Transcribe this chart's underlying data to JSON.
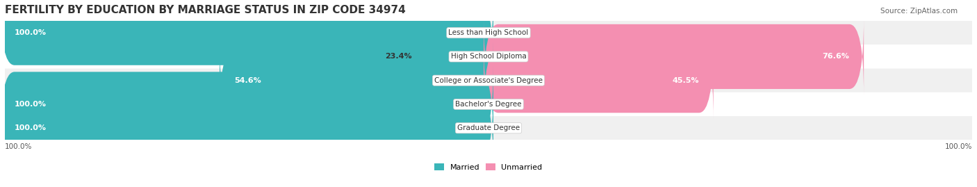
{
  "title": "FERTILITY BY EDUCATION BY MARRIAGE STATUS IN ZIP CODE 34974",
  "source": "Source: ZipAtlas.com",
  "categories": [
    "Less than High School",
    "High School Diploma",
    "College or Associate's Degree",
    "Bachelor's Degree",
    "Graduate Degree"
  ],
  "married": [
    100.0,
    23.4,
    54.6,
    100.0,
    100.0
  ],
  "unmarried": [
    0.0,
    76.6,
    45.5,
    0.0,
    0.0
  ],
  "married_color": "#3ab5b8",
  "unmarried_color": "#f48fb1",
  "bar_bg_color": "#e8e8e8",
  "row_bg_colors": [
    "#f0f0f0",
    "#ffffff"
  ],
  "title_fontsize": 11,
  "label_fontsize": 8,
  "tick_fontsize": 7.5,
  "source_fontsize": 7.5,
  "axis_left_label": "100.0%",
  "axis_right_label": "100.0%"
}
